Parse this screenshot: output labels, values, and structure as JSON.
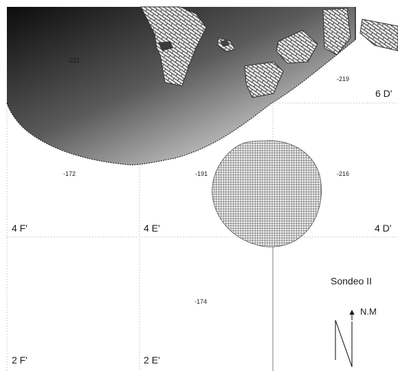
{
  "plan": {
    "elevations": [
      {
        "id": "e1",
        "value": "-221"
      },
      {
        "id": "e2",
        "value": "-219"
      },
      {
        "id": "e3",
        "value": "-172"
      },
      {
        "id": "e4",
        "value": "-191"
      },
      {
        "id": "e5",
        "value": "-216"
      },
      {
        "id": "e6",
        "value": "-174"
      }
    ],
    "grid_labels": [
      {
        "id": "g1",
        "value": "6 D'"
      },
      {
        "id": "g2",
        "value": "4 F'"
      },
      {
        "id": "g3",
        "value": "4 E'"
      },
      {
        "id": "g4",
        "value": "4 D'"
      },
      {
        "id": "g5",
        "value": "2 F'"
      },
      {
        "id": "g6",
        "value": "2 E'"
      }
    ],
    "title": "Sondeo II",
    "north_label": "N.M"
  },
  "colors": {
    "excavation_dark": "#111111",
    "excavation_light": "#f2f2f2",
    "stone_fill": "#e6e6e6",
    "stone_line": "#333333",
    "grid_line": "#b0b0b0"
  },
  "icons": {
    "north_arrow": "north-arrow-icon"
  }
}
